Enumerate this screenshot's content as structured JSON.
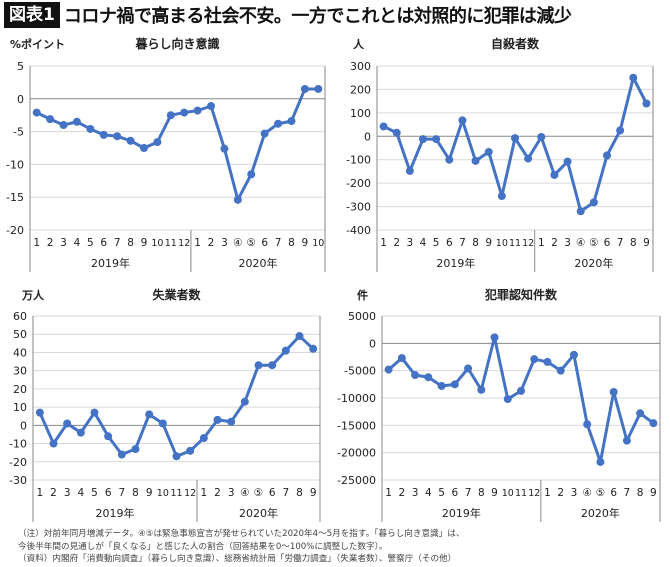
{
  "header": {
    "badge": "図表1",
    "title": "コロナ禍で高まる社会不安。一方でこれとは対照的に犯罪は減少"
  },
  "notes": [
    "（注）対前年同月増減データ。④⑤は緊急事態宣言が発せられていた2020年4〜5月を指す。「暮らし向き意識」は、",
    "今後半年間の見通しが「良くなる」と感じた人の割合（回答結果を0〜100%に調整した数字）。",
    "（資料）内閣府「消費動向調査」（暮らし向き意識）、総務省統計局「労働力調査」（失業者数）、警察庁（その他）"
  ],
  "colors": {
    "line": "#4472C4",
    "grid": "#d9d9d9",
    "axis": "#888888"
  },
  "chart_data": [
    {
      "type": "line",
      "title": "暮らし向き意識",
      "unit": "%ポイント",
      "ylim": [
        -20,
        5
      ],
      "yticks": [
        5,
        0,
        -5,
        -10,
        -15,
        -20
      ],
      "categories": [
        "1",
        "2",
        "3",
        "4",
        "5",
        "6",
        "7",
        "8",
        "9",
        "10",
        "11",
        "12",
        "1",
        "2",
        "3",
        "④",
        "⑤",
        "6",
        "7",
        "8",
        "9",
        "10"
      ],
      "groups": [
        {
          "label": "2019年",
          "count": 12
        },
        {
          "label": "2020年",
          "count": 10
        }
      ],
      "values": [
        -2.1,
        -3.1,
        -4.0,
        -3.5,
        -4.6,
        -5.5,
        -5.7,
        -6.4,
        -7.5,
        -6.6,
        -2.5,
        -2.1,
        -1.8,
        -1.1,
        -7.6,
        -15.4,
        -11.5,
        -5.3,
        -3.8,
        -3.4,
        1.5,
        1.5
      ]
    },
    {
      "type": "line",
      "title": "自殺者数",
      "unit": "人",
      "ylim": [
        -400,
        300
      ],
      "yticks": [
        300,
        200,
        100,
        0,
        -100,
        -200,
        -300,
        -400
      ],
      "categories": [
        "1",
        "2",
        "3",
        "4",
        "5",
        "6",
        "7",
        "8",
        "9",
        "10",
        "11",
        "12",
        "1",
        "2",
        "3",
        "④",
        "⑤",
        "6",
        "7",
        "8",
        "9"
      ],
      "groups": [
        {
          "label": "2019年",
          "count": 12
        },
        {
          "label": "2020年",
          "count": 9
        }
      ],
      "values": [
        42,
        15,
        -148,
        -12,
        -12,
        -100,
        68,
        -105,
        -67,
        -255,
        -8,
        -95,
        -3,
        -165,
        -108,
        -320,
        -282,
        -82,
        25,
        250,
        140
      ]
    },
    {
      "type": "line",
      "title": "失業者数",
      "unit": "万人",
      "ylim": [
        -30,
        60
      ],
      "yticks": [
        60,
        50,
        40,
        30,
        20,
        10,
        0,
        -10,
        -20,
        -30
      ],
      "categories": [
        "1",
        "2",
        "3",
        "4",
        "5",
        "6",
        "7",
        "8",
        "9",
        "10",
        "11",
        "12",
        "1",
        "2",
        "3",
        "④",
        "⑤",
        "6",
        "7",
        "8",
        "9"
      ],
      "groups": [
        {
          "label": "2019年",
          "count": 12
        },
        {
          "label": "2020年",
          "count": 9
        }
      ],
      "values": [
        7,
        -10,
        1,
        -4,
        7,
        -6,
        -16,
        -13,
        6,
        1,
        -17,
        -14,
        -7,
        3,
        2,
        13,
        33,
        33,
        41,
        49,
        42
      ]
    },
    {
      "type": "line",
      "title": "犯罪認知件数",
      "unit": "件",
      "ylim": [
        -25000,
        5000
      ],
      "yticks": [
        5000,
        0,
        -5000,
        -10000,
        -15000,
        -20000,
        -25000
      ],
      "categories": [
        "1",
        "2",
        "3",
        "4",
        "5",
        "6",
        "7",
        "8",
        "9",
        "10",
        "11",
        "12",
        "1",
        "2",
        "3",
        "④",
        "⑤",
        "6",
        "7",
        "8",
        "9"
      ],
      "groups": [
        {
          "label": "2019年",
          "count": 12
        },
        {
          "label": "2020年",
          "count": 9
        }
      ],
      "values": [
        -4800,
        -2700,
        -5800,
        -6200,
        -7800,
        -7500,
        -4600,
        -8500,
        1100,
        -10200,
        -8700,
        -2900,
        -3400,
        -5000,
        -2100,
        -14800,
        -21700,
        -8900,
        -17800,
        -12800,
        -14600
      ]
    }
  ]
}
